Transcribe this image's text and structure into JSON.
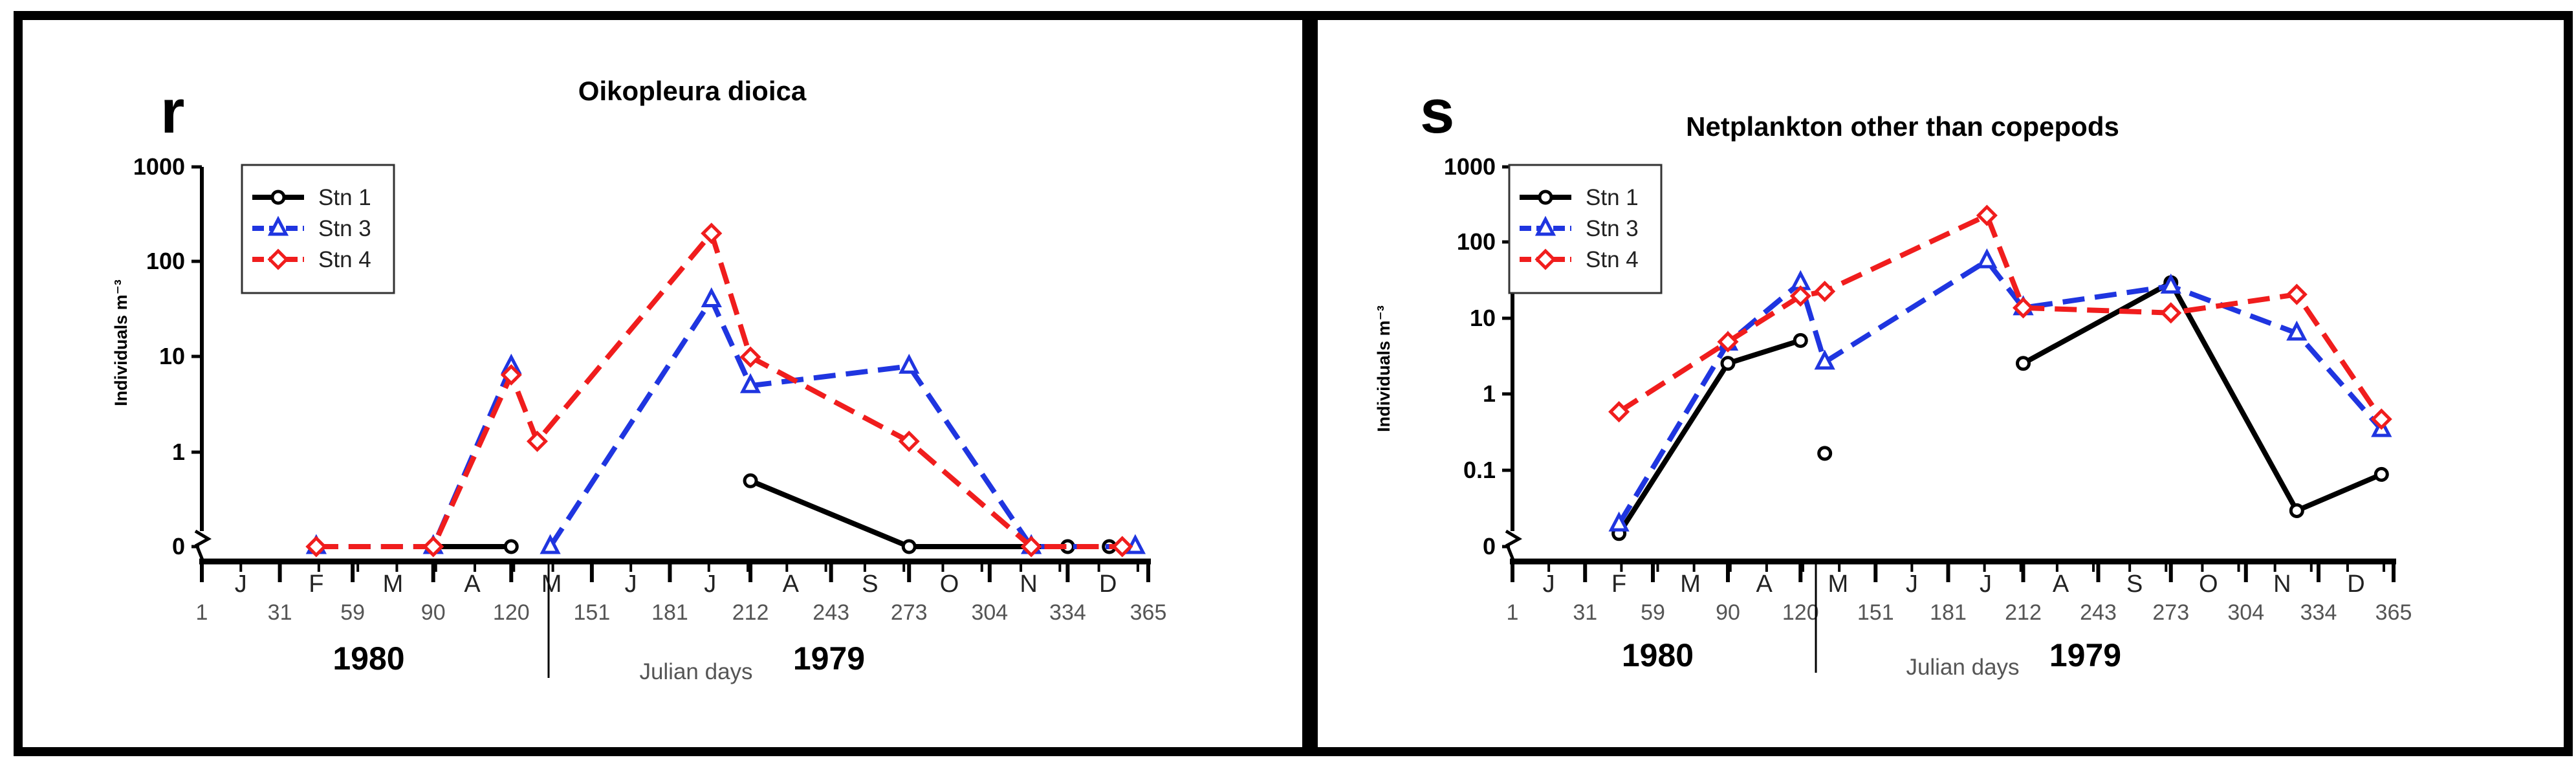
{
  "chart_data": [
    {
      "panel_letter": "r",
      "type": "line",
      "title": "Oikopleura dioica",
      "ylabel": "Individuals m⁻³",
      "y_scale": "log",
      "y_ticks": [
        "1000",
        "100",
        "10",
        "1",
        "0"
      ],
      "months": [
        "J",
        "F",
        "M",
        "A",
        "M",
        "J",
        "J",
        "A",
        "S",
        "O",
        "N",
        "D"
      ],
      "julian_ticks": [
        "1",
        "31",
        "59",
        "90",
        "120",
        "151",
        "181",
        "212",
        "243",
        "273",
        "304",
        "334",
        "365"
      ],
      "xlabel": "Julian days",
      "year_left": "1980",
      "year_right": "1979",
      "legend": [
        "Stn 1",
        "Stn 3",
        "Stn 4"
      ],
      "series": [
        {
          "name": "Stn 1",
          "color": "#000000",
          "marker": "circle",
          "dash": "solid",
          "segments": [
            [
              [
                90,
                0
              ],
              [
                120,
                0
              ]
            ],
            [
              [
                212,
                0.5
              ],
              [
                273,
                0
              ],
              [
                334,
                0
              ]
            ]
          ],
          "isolated": [
            [
              45,
              0
            ],
            [
              90,
              0
            ],
            [
              320,
              0
            ],
            [
              350,
              0
            ]
          ]
        },
        {
          "name": "Stn 3",
          "color": "#1f35e0",
          "marker": "triangle",
          "dash": "dashed",
          "segments": [
            [
              [
                45,
                0
              ],
              [
                90,
                0
              ],
              [
                120,
                8
              ],
              [
                120,
                8
              ]
            ],
            [
              [
                135,
                0
              ],
              [
                197,
                40
              ],
              [
                212,
                5
              ],
              [
                273,
                8
              ],
              [
                320,
                0
              ],
              [
                360,
                0
              ]
            ]
          ],
          "isolated": []
        },
        {
          "name": "Stn 4",
          "color": "#f01d1d",
          "marker": "diamond",
          "dash": "dashed",
          "segments": [
            [
              [
                45,
                0
              ],
              [
                90,
                0
              ],
              [
                120,
                6.5
              ],
              [
                130,
                1.3
              ],
              [
                197,
                200
              ],
              [
                212,
                10
              ],
              [
                273,
                1.3
              ],
              [
                320,
                0
              ],
              [
                355,
                0
              ]
            ]
          ],
          "isolated": []
        }
      ]
    },
    {
      "panel_letter": "s",
      "type": "line",
      "title": "Netplankton other than copepods",
      "ylabel": "Individuals m⁻³",
      "y_scale": "log",
      "y_ticks": [
        "1000",
        "100",
        "10",
        "1",
        "0.1",
        "0"
      ],
      "months": [
        "J",
        "F",
        "M",
        "A",
        "M",
        "J",
        "J",
        "A",
        "S",
        "O",
        "N",
        "D"
      ],
      "julian_ticks": [
        "1",
        "31",
        "59",
        "90",
        "120",
        "151",
        "181",
        "212",
        "243",
        "273",
        "304",
        "334",
        "365"
      ],
      "xlabel": "Julian days",
      "year_left": "1980",
      "year_right": "1979",
      "legend": [
        "Stn 1",
        "Stn 3",
        "Stn 4"
      ],
      "series": [
        {
          "name": "Stn 1",
          "color": "#000000",
          "marker": "circle",
          "dash": "solid",
          "segments": [
            [
              [
                45,
                0.015
              ],
              [
                90,
                2.6
              ],
              [
                120,
                5.2
              ]
            ],
            [
              [
                212,
                2.6
              ],
              [
                273,
                30
              ],
              [
                325,
                0.03
              ],
              [
                360,
                0.09
              ]
            ]
          ],
          "isolated": [
            [
              130,
              0.17
            ]
          ]
        },
        {
          "name": "Stn 3",
          "color": "#1f35e0",
          "marker": "triangle",
          "dash": "dashed",
          "segments": [
            [
              [
                45,
                0.02
              ],
              [
                90,
                4.8
              ],
              [
                120,
                30
              ],
              [
                130,
                2.7
              ],
              [
                197,
                58
              ],
              [
                212,
                14
              ],
              [
                273,
                27
              ],
              [
                325,
                6.5
              ],
              [
                360,
                0.35
              ]
            ]
          ],
          "isolated": []
        },
        {
          "name": "Stn 4",
          "color": "#f01d1d",
          "marker": "diamond",
          "dash": "dashed",
          "segments": [
            [
              [
                45,
                0.6
              ],
              [
                90,
                5
              ],
              [
                120,
                20
              ],
              [
                130,
                23
              ],
              [
                197,
                230
              ],
              [
                212,
                14
              ],
              [
                273,
                12
              ],
              [
                325,
                21
              ],
              [
                360,
                0.48
              ]
            ]
          ],
          "isolated": []
        }
      ]
    }
  ]
}
